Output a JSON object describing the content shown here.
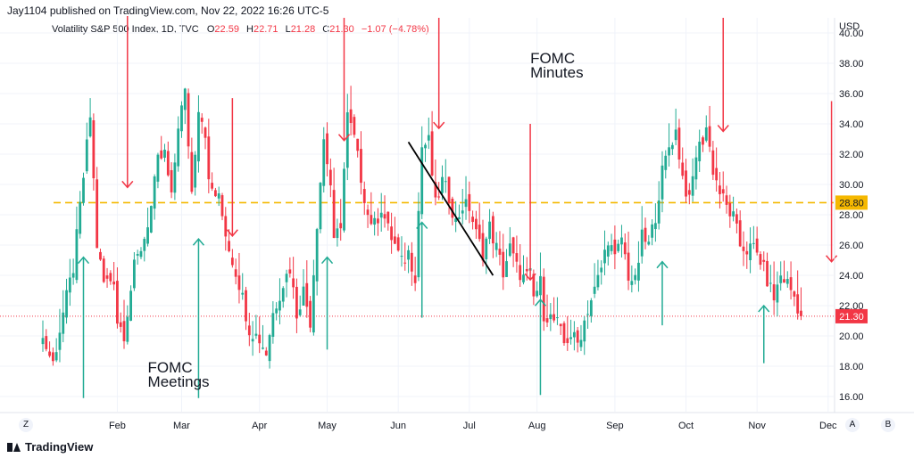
{
  "publisher": "Jay1104 published on TradingView.com, Nov 22, 2022 16:26 UTC-5",
  "symbol": {
    "name": "Volatility S&P 500 Index, 1D, TVC",
    "fields": [
      {
        "label": "O",
        "value": "22.59"
      },
      {
        "label": "H",
        "value": "22.71"
      },
      {
        "label": "L",
        "value": "21.28"
      },
      {
        "label": "C",
        "value": "21.30"
      },
      {
        "label": "",
        "value": "−1.07 (−4.78%)"
      }
    ]
  },
  "footer": {
    "brand": "TradingView"
  },
  "buttons": {
    "zoom": "Z",
    "auto": "A",
    "log": "B"
  },
  "colors": {
    "up": "#22ab94",
    "down": "#f23645",
    "dashed_line": "#f5b800",
    "trend_line": "#000000"
  },
  "chart_data": {
    "type": "candlestick",
    "currency": "USD",
    "ylim": [
      15.0,
      41.0
    ],
    "y_ticks": [
      16,
      18,
      20,
      22,
      24,
      26,
      28,
      30,
      32,
      34,
      36,
      38,
      40
    ],
    "y_tick_labels": [
      "16.00",
      "18.00",
      "20.00",
      "22.00",
      "24.00",
      "26.00",
      "28.00",
      "30.00",
      "32.00",
      "34.00",
      "36.00",
      "38.00",
      "40.00"
    ],
    "x_range": [
      0,
      231
    ],
    "x_ticks": [
      {
        "label": "Feb",
        "x": 22
      },
      {
        "label": "Mar",
        "x": 41
      },
      {
        "label": "Apr",
        "x": 64
      },
      {
        "label": "May",
        "x": 84
      },
      {
        "label": "Jun",
        "x": 105
      },
      {
        "label": "Jul",
        "x": 126
      },
      {
        "label": "Aug",
        "x": 146
      },
      {
        "label": "Sep",
        "x": 169
      },
      {
        "label": "Oct",
        "x": 190
      },
      {
        "label": "Nov",
        "x": 211
      },
      {
        "label": "Dec",
        "x": 232
      }
    ],
    "anchors": [
      [
        0,
        19.8
      ],
      [
        3,
        18.2
      ],
      [
        6,
        21.5
      ],
      [
        9,
        24.5
      ],
      [
        12,
        30.5
      ],
      [
        14,
        34.5
      ],
      [
        16,
        26.0
      ],
      [
        18,
        23.5
      ],
      [
        21,
        23.8
      ],
      [
        22,
        21.0
      ],
      [
        24,
        20.2
      ],
      [
        27,
        24.5
      ],
      [
        30,
        26.5
      ],
      [
        32,
        28.5
      ],
      [
        34,
        31.5
      ],
      [
        36,
        32.0
      ],
      [
        38,
        29.0
      ],
      [
        40,
        34.0
      ],
      [
        42,
        36.0
      ],
      [
        44,
        29.5
      ],
      [
        46,
        35.2
      ],
      [
        48,
        33.5
      ],
      [
        49,
        30.0
      ],
      [
        52,
        29.0
      ],
      [
        55,
        25.8
      ],
      [
        58,
        23.5
      ],
      [
        61,
        20.5
      ],
      [
        64,
        19.8
      ],
      [
        66,
        18.9
      ],
      [
        68,
        21.5
      ],
      [
        71,
        23.5
      ],
      [
        73,
        24.5
      ],
      [
        75,
        21.5
      ],
      [
        77,
        23.0
      ],
      [
        79,
        21.0
      ],
      [
        81,
        27.5
      ],
      [
        83,
        33.0
      ],
      [
        85,
        30.0
      ],
      [
        86,
        26.0
      ],
      [
        88,
        27.5
      ],
      [
        90,
        34.5
      ],
      [
        92,
        33.0
      ],
      [
        94,
        30.5
      ],
      [
        96,
        28.0
      ],
      [
        98,
        27.3
      ],
      [
        100,
        28.5
      ],
      [
        102,
        27.0
      ],
      [
        104,
        26.0
      ],
      [
        106,
        24.8
      ],
      [
        108,
        25.5
      ],
      [
        110,
        24.0
      ],
      [
        112,
        32.5
      ],
      [
        114,
        32.8
      ],
      [
        116,
        28.6
      ],
      [
        118,
        30.2
      ],
      [
        120,
        29.2
      ],
      [
        122,
        27.5
      ],
      [
        124,
        28.6
      ],
      [
        126,
        28.5
      ],
      [
        128,
        26.7
      ],
      [
        130,
        25.5
      ],
      [
        132,
        27.2
      ],
      [
        134,
        25.8
      ],
      [
        136,
        24.2
      ],
      [
        138,
        25.8
      ],
      [
        140,
        24.5
      ],
      [
        142,
        23.8
      ],
      [
        144,
        24.0
      ],
      [
        145,
        22.5
      ],
      [
        147,
        23.5
      ],
      [
        148,
        21.5
      ],
      [
        150,
        21.2
      ],
      [
        152,
        20.8
      ],
      [
        154,
        19.5
      ],
      [
        156,
        20.1
      ],
      [
        158,
        19.5
      ],
      [
        159,
        20.2
      ],
      [
        161,
        21.8
      ],
      [
        163,
        23.0
      ],
      [
        165,
        24.5
      ],
      [
        167,
        26.5
      ],
      [
        169,
        25.0
      ],
      [
        171,
        26.5
      ],
      [
        173,
        24.0
      ],
      [
        175,
        23.5
      ],
      [
        177,
        26.5
      ],
      [
        179,
        26.0
      ],
      [
        181,
        28.0
      ],
      [
        183,
        30.8
      ],
      [
        185,
        32.5
      ],
      [
        187,
        33.5
      ],
      [
        189,
        30.5
      ],
      [
        191,
        28.8
      ],
      [
        193,
        32.0
      ],
      [
        195,
        33.0
      ],
      [
        196,
        33.8
      ],
      [
        198,
        31.0
      ],
      [
        200,
        29.5
      ],
      [
        202,
        28.5
      ],
      [
        204,
        27.8
      ],
      [
        206,
        26.0
      ],
      [
        208,
        25.7
      ],
      [
        210,
        25.8
      ],
      [
        212,
        25.0
      ],
      [
        214,
        23.7
      ],
      [
        216,
        22.5
      ],
      [
        218,
        24.0
      ],
      [
        220,
        23.5
      ],
      [
        222,
        22.6
      ],
      [
        224,
        21.3
      ]
    ],
    "last_price": 21.3,
    "last_price_label": "21.30",
    "dashed_level": 28.8,
    "dashed_level_label": "28.80",
    "trend_line": [
      [
        108,
        32.8
      ],
      [
        133,
        24.0
      ]
    ],
    "red_arrows": [
      {
        "x": 25,
        "y_top": 45.0,
        "y_bottom": 29.8
      },
      {
        "x": 56,
        "y_top": 35.7,
        "y_bottom": 26.6
      },
      {
        "x": 89,
        "y_top": 41.0,
        "y_bottom": 32.9
      },
      {
        "x": 117,
        "y_top": 41.0,
        "y_bottom": 33.7
      },
      {
        "x": 144,
        "y_top": 34.0,
        "y_bottom": 23.7
      },
      {
        "x": 201,
        "y_top": 41.0,
        "y_bottom": 33.5
      },
      {
        "x": 233,
        "y_top": 35.5,
        "y_bottom": 24.9
      }
    ],
    "green_arrows": [
      {
        "x": 12,
        "y_bottom": 15.9,
        "y_top": 25.2
      },
      {
        "x": 46,
        "y_bottom": 15.9,
        "y_top": 26.4
      },
      {
        "x": 84,
        "y_bottom": 19.1,
        "y_top": 25.2
      },
      {
        "x": 112,
        "y_bottom": 21.2,
        "y_top": 27.5
      },
      {
        "x": 147,
        "y_bottom": 16.1,
        "y_top": 22.4
      },
      {
        "x": 183,
        "y_bottom": 20.7,
        "y_top": 24.9
      },
      {
        "x": 213,
        "y_bottom": 18.2,
        "y_top": 22.0
      }
    ],
    "annotations": [
      {
        "lines": [
          "FOMC",
          "Meetings"
        ],
        "x": 31,
        "y": 17.6
      },
      {
        "lines": [
          "FOMC",
          "Minutes"
        ],
        "x": 144,
        "y": 38.0
      }
    ]
  }
}
